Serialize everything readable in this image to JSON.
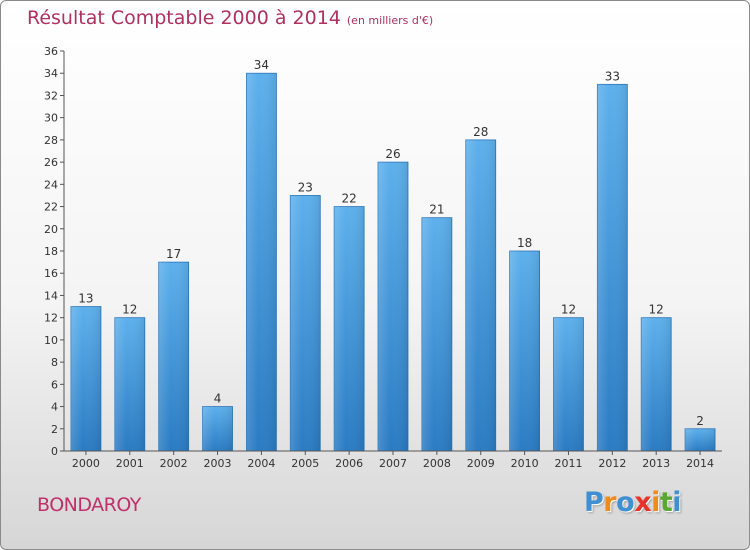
{
  "chart_data": {
    "type": "bar",
    "title": "Résultat Comptable 2000 à 2014",
    "subtitle": "(en milliers d'€)",
    "categories": [
      "2000",
      "2001",
      "2002",
      "2003",
      "2004",
      "2005",
      "2006",
      "2007",
      "2008",
      "2009",
      "2010",
      "2011",
      "2012",
      "2013",
      "2014"
    ],
    "values": [
      13,
      12,
      17,
      4,
      34,
      23,
      22,
      26,
      21,
      28,
      18,
      12,
      33,
      12,
      2
    ],
    "ylim": [
      0,
      36
    ],
    "yticks": [
      0,
      2,
      4,
      6,
      8,
      10,
      12,
      14,
      16,
      18,
      20,
      22,
      24,
      26,
      28,
      30,
      32,
      34,
      36
    ],
    "xlabel": "",
    "ylabel": "",
    "grid": false,
    "bar_color": "#3a8fd6"
  },
  "commune": "BONDAROY",
  "logo": {
    "letters": [
      "P",
      "r",
      "o",
      "x",
      "i",
      "t",
      "i"
    ],
    "colors": [
      "#3f8fd2",
      "#f08a1a",
      "#3f8fd2",
      "#e8322a",
      "#f08a1a",
      "#5aa832",
      "#3f8fd2"
    ]
  },
  "colors": {
    "title": "#b03060",
    "commune": "#c0306a"
  }
}
